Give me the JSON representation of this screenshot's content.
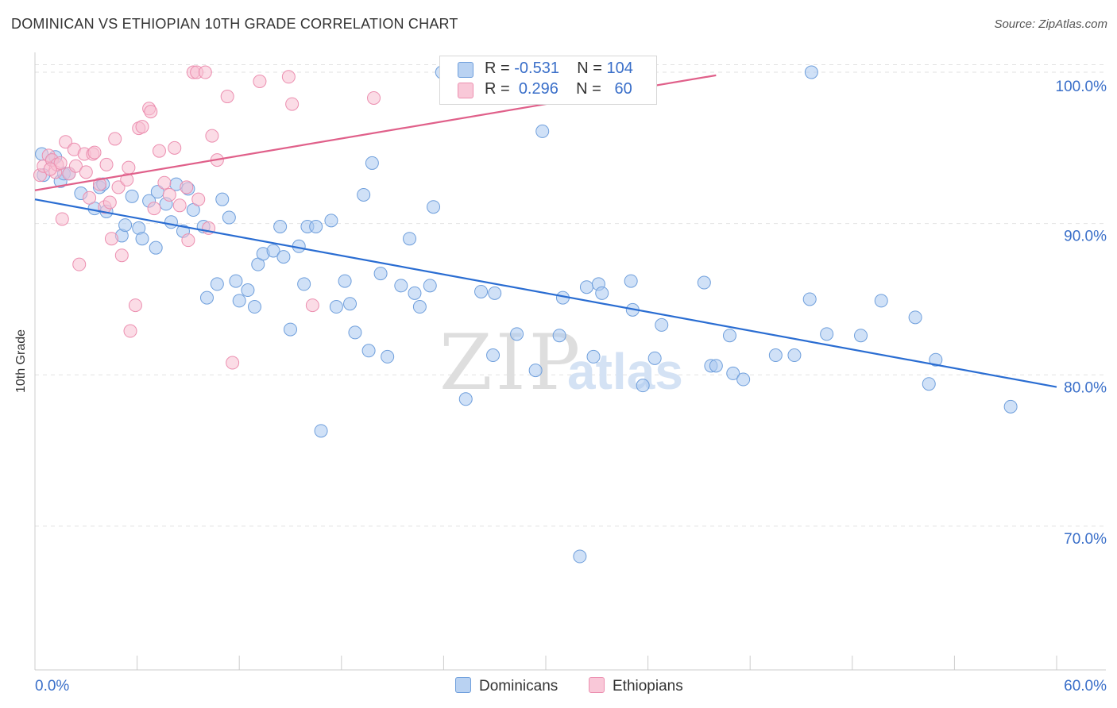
{
  "title": "DOMINICAN VS ETHIOPIAN 10TH GRADE CORRELATION CHART",
  "source": "Source: ZipAtlas.com",
  "watermark": {
    "zip": "ZIP",
    "atlas": "atlas"
  },
  "legend_stats": {
    "dominicans": {
      "r_label": "R =",
      "r_value": "-0.531",
      "n_label": "N =",
      "n_value": "104"
    },
    "ethiopians": {
      "r_label": "R =",
      "r_value": "0.296",
      "n_label": "N =",
      "n_value": "60"
    }
  },
  "chart_data": {
    "type": "scatter",
    "title": "DOMINICAN VS ETHIOPIAN 10TH GRADE CORRELATION CHART",
    "xlabel": "",
    "ylabel": "10th Grade",
    "xlim": [
      0,
      60
    ],
    "ylim": [
      60.5,
      101.0
    ],
    "x_tick_labels": [
      "0.0%",
      "60.0%"
    ],
    "y_ticks": [
      70,
      80,
      90,
      100
    ],
    "y_tick_labels": [
      "70.0%",
      "80.0%",
      "90.0%",
      "100.0%"
    ],
    "grid": true,
    "legend_position": "top-center",
    "series": [
      {
        "name": "Dominicans",
        "color": "#a9c8f0",
        "edge_color": "#6f9fdc",
        "trend_color": "#2a6dd2",
        "trend": {
          "x": [
            0,
            60
          ],
          "y": [
            91.6,
            79.2
          ]
        },
        "points": [
          [
            0.4,
            94.6
          ],
          [
            0.5,
            93.2
          ],
          [
            1.0,
            94.2
          ],
          [
            1.2,
            94.4
          ],
          [
            1.5,
            92.8
          ],
          [
            1.7,
            93.3
          ],
          [
            2.0,
            93.3
          ],
          [
            2.7,
            92.0
          ],
          [
            3.5,
            91.0
          ],
          [
            3.8,
            92.4
          ],
          [
            4.0,
            92.6
          ],
          [
            4.2,
            90.8
          ],
          [
            5.1,
            89.2
          ],
          [
            5.3,
            89.9
          ],
          [
            5.7,
            91.8
          ],
          [
            6.1,
            89.7
          ],
          [
            6.3,
            89.0
          ],
          [
            6.7,
            91.5
          ],
          [
            7.1,
            88.4
          ],
          [
            7.2,
            92.1
          ],
          [
            7.7,
            91.3
          ],
          [
            8.0,
            90.1
          ],
          [
            8.3,
            92.6
          ],
          [
            8.7,
            89.5
          ],
          [
            9.0,
            92.3
          ],
          [
            9.3,
            90.9
          ],
          [
            9.9,
            89.8
          ],
          [
            10.1,
            85.1
          ],
          [
            10.7,
            86.0
          ],
          [
            11.0,
            91.6
          ],
          [
            11.4,
            90.4
          ],
          [
            11.8,
            86.2
          ],
          [
            12.0,
            84.9
          ],
          [
            12.5,
            85.6
          ],
          [
            12.9,
            84.5
          ],
          [
            13.1,
            87.3
          ],
          [
            13.4,
            88.0
          ],
          [
            14.0,
            88.2
          ],
          [
            14.4,
            89.8
          ],
          [
            14.6,
            87.8
          ],
          [
            15.0,
            83.0
          ],
          [
            15.5,
            88.5
          ],
          [
            15.8,
            86.0
          ],
          [
            16.0,
            89.8
          ],
          [
            16.5,
            89.8
          ],
          [
            16.8,
            76.3
          ],
          [
            17.4,
            90.2
          ],
          [
            17.7,
            84.5
          ],
          [
            18.2,
            86.2
          ],
          [
            18.5,
            84.7
          ],
          [
            18.8,
            82.8
          ],
          [
            19.3,
            91.9
          ],
          [
            19.6,
            81.6
          ],
          [
            19.8,
            94.0
          ],
          [
            20.3,
            86.7
          ],
          [
            20.7,
            81.2
          ],
          [
            21.5,
            85.9
          ],
          [
            22.0,
            89.0
          ],
          [
            22.3,
            85.4
          ],
          [
            22.6,
            84.5
          ],
          [
            23.2,
            85.9
          ],
          [
            23.4,
            91.1
          ],
          [
            23.9,
            100.0
          ],
          [
            25.1,
            100.0
          ],
          [
            25.3,
            78.4
          ],
          [
            26.2,
            85.5
          ],
          [
            26.9,
            81.3
          ],
          [
            27.0,
            85.4
          ],
          [
            28.0,
            100.0
          ],
          [
            28.3,
            82.7
          ],
          [
            29.4,
            80.3
          ],
          [
            29.8,
            96.1
          ],
          [
            30.8,
            82.6
          ],
          [
            31.0,
            85.1
          ],
          [
            32.4,
            85.8
          ],
          [
            32.8,
            81.2
          ],
          [
            33.1,
            86.0
          ],
          [
            33.3,
            85.4
          ],
          [
            32.0,
            68.0
          ],
          [
            33.5,
            100.0
          ],
          [
            33.8,
            100.0
          ],
          [
            35.0,
            86.2
          ],
          [
            35.1,
            84.3
          ],
          [
            35.7,
            79.3
          ],
          [
            36.4,
            81.1
          ],
          [
            36.8,
            83.3
          ],
          [
            39.3,
            86.1
          ],
          [
            39.7,
            80.6
          ],
          [
            40.0,
            80.6
          ],
          [
            40.8,
            82.6
          ],
          [
            41.0,
            80.1
          ],
          [
            41.6,
            79.7
          ],
          [
            43.5,
            81.3
          ],
          [
            44.6,
            81.3
          ],
          [
            45.6,
            100.0
          ],
          [
            45.5,
            85.0
          ],
          [
            46.5,
            82.7
          ],
          [
            48.5,
            82.6
          ],
          [
            49.7,
            84.9
          ],
          [
            51.7,
            83.8
          ],
          [
            52.5,
            79.4
          ],
          [
            52.9,
            81.0
          ],
          [
            57.3,
            77.9
          ],
          [
            34.5,
            100.0
          ]
        ]
      },
      {
        "name": "Ethiopians",
        "color": "#f8bfd2",
        "edge_color": "#ec8fb0",
        "trend_color": "#e0608a",
        "trend": {
          "x": [
            0,
            40
          ],
          "y": [
            92.2,
            99.8
          ]
        },
        "points": [
          [
            0.3,
            93.2
          ],
          [
            0.5,
            93.8
          ],
          [
            0.8,
            94.5
          ],
          [
            1.0,
            94.2
          ],
          [
            1.2,
            93.4
          ],
          [
            1.3,
            93.9
          ],
          [
            1.5,
            94.0
          ],
          [
            1.6,
            90.3
          ],
          [
            1.8,
            95.4
          ],
          [
            2.0,
            93.3
          ],
          [
            2.3,
            94.9
          ],
          [
            2.4,
            93.8
          ],
          [
            2.6,
            87.3
          ],
          [
            2.9,
            94.6
          ],
          [
            3.0,
            93.4
          ],
          [
            3.2,
            91.7
          ],
          [
            3.4,
            94.6
          ],
          [
            3.5,
            94.7
          ],
          [
            3.8,
            92.6
          ],
          [
            4.1,
            91.1
          ],
          [
            4.2,
            93.9
          ],
          [
            4.4,
            91.4
          ],
          [
            4.5,
            89.0
          ],
          [
            4.7,
            95.6
          ],
          [
            4.9,
            92.4
          ],
          [
            5.1,
            87.9
          ],
          [
            5.4,
            92.9
          ],
          [
            5.5,
            93.7
          ],
          [
            5.6,
            82.9
          ],
          [
            5.9,
            84.6
          ],
          [
            6.1,
            96.3
          ],
          [
            6.3,
            96.4
          ],
          [
            6.7,
            97.6
          ],
          [
            6.8,
            97.4
          ],
          [
            7.0,
            91.0
          ],
          [
            7.3,
            94.8
          ],
          [
            7.6,
            92.7
          ],
          [
            7.9,
            91.9
          ],
          [
            8.2,
            95.0
          ],
          [
            8.5,
            91.2
          ],
          [
            8.9,
            92.4
          ],
          [
            9.0,
            88.9
          ],
          [
            9.3,
            100.0
          ],
          [
            9.5,
            100.0
          ],
          [
            9.6,
            91.6
          ],
          [
            10.0,
            100.0
          ],
          [
            10.2,
            89.7
          ],
          [
            10.4,
            95.8
          ],
          [
            10.7,
            94.2
          ],
          [
            11.3,
            98.4
          ],
          [
            11.6,
            80.8
          ],
          [
            13.2,
            99.4
          ],
          [
            14.9,
            99.7
          ],
          [
            15.1,
            97.9
          ],
          [
            16.3,
            84.6
          ],
          [
            19.9,
            98.3
          ],
          [
            33.0,
            100.0
          ],
          [
            33.4,
            100.0
          ],
          [
            33.8,
            100.0
          ],
          [
            0.9,
            93.6
          ]
        ]
      }
    ]
  },
  "bottom_legend": [
    "Dominicans",
    "Ethiopians"
  ]
}
